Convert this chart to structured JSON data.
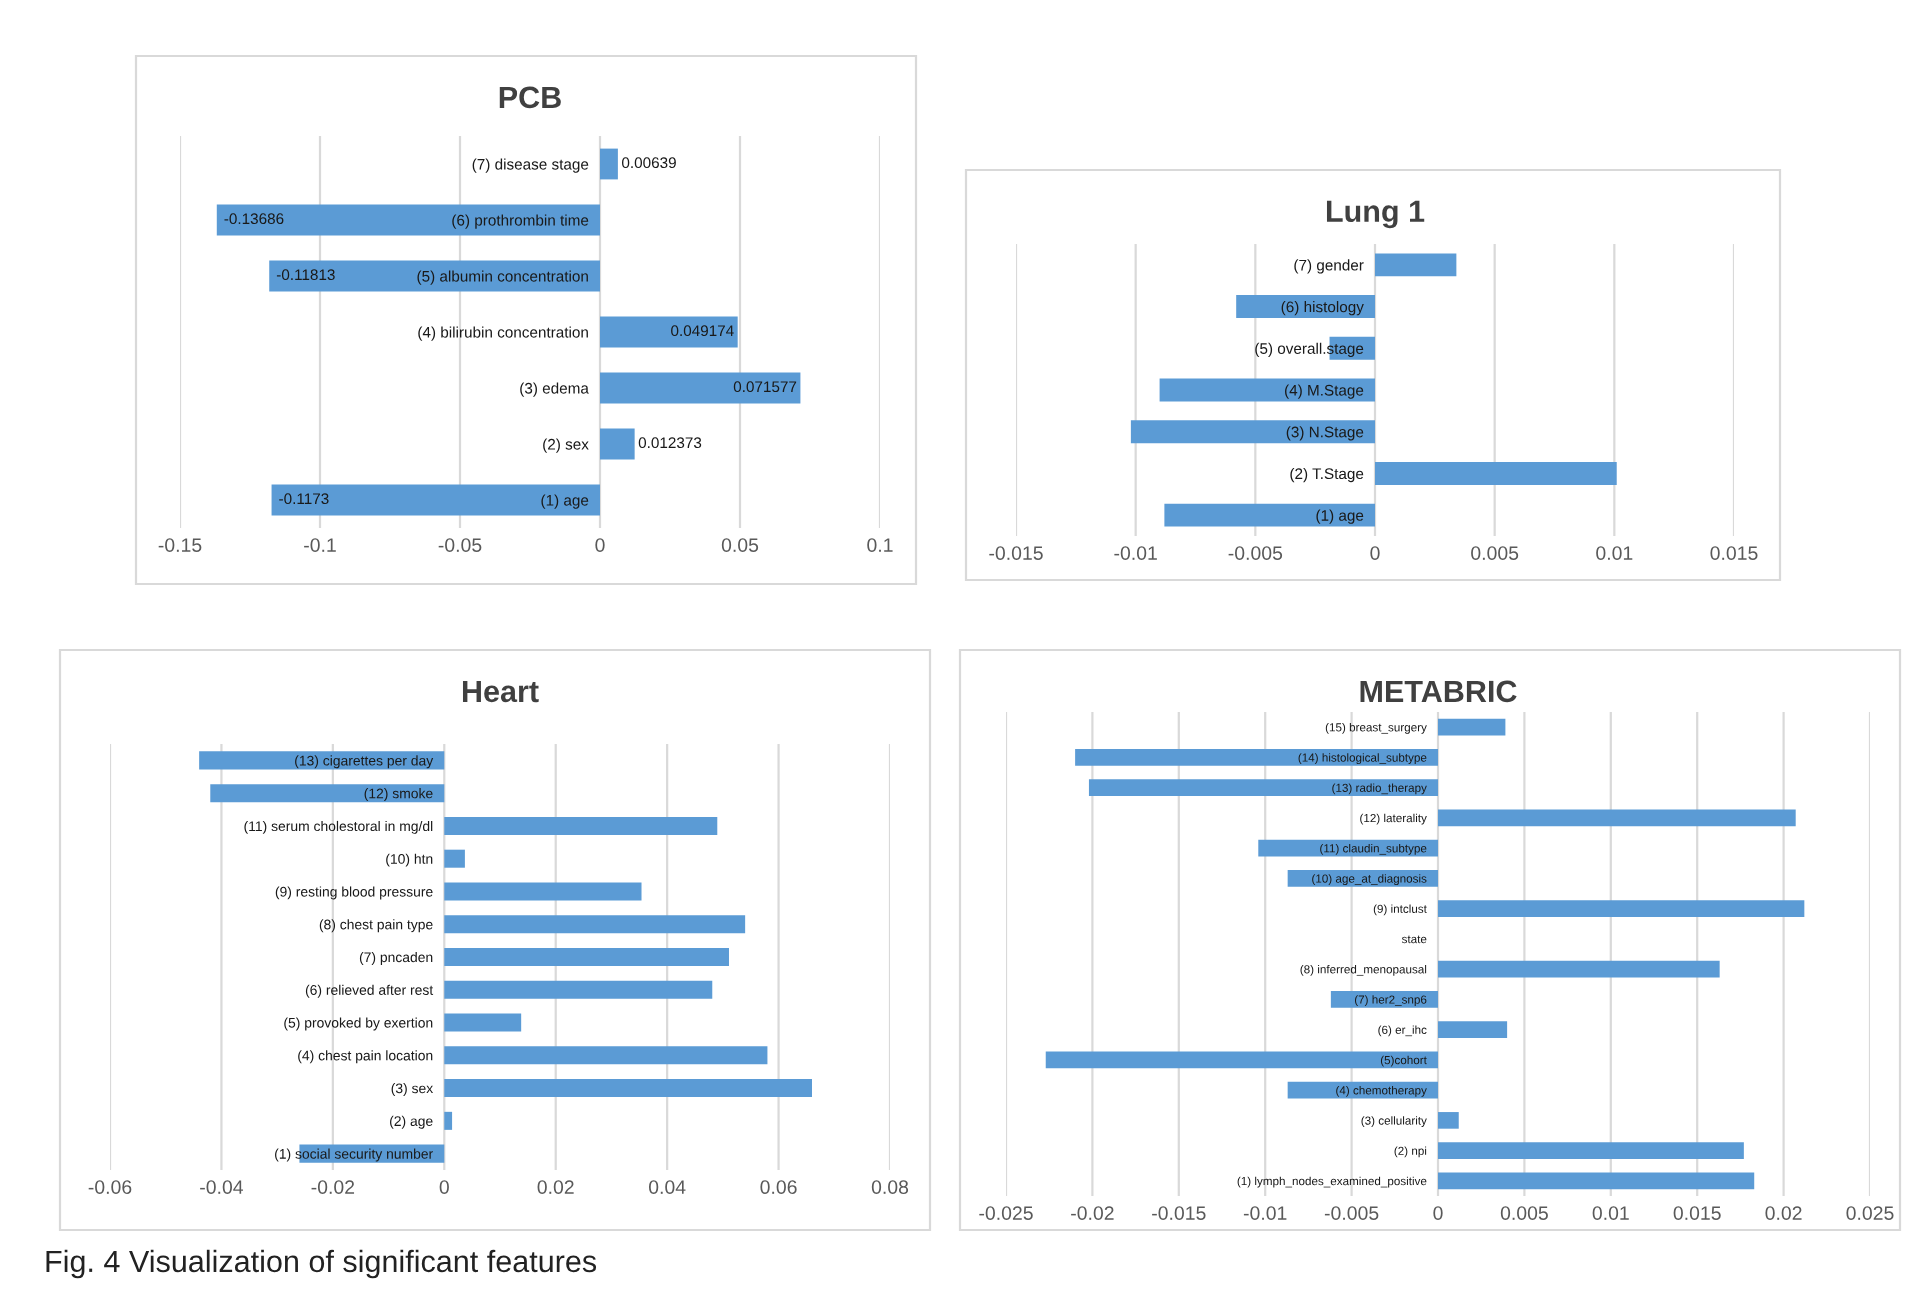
{
  "chart_data": [
    {
      "type": "bar",
      "orientation": "horizontal",
      "title": "PCB",
      "categories": [
        "(7) disease stage",
        "(6) prothrombin time",
        "(5) albumin concentration",
        "(4) bilirubin concentration",
        "(3) edema",
        "(2) sex",
        "(1) age"
      ],
      "values": [
        0.00639,
        -0.13686,
        -0.11813,
        0.049174,
        0.071577,
        0.012373,
        -0.1173
      ],
      "color": "#5b9bd5",
      "data_labels": true,
      "xlim": [
        -0.15,
        0.1
      ],
      "xticks": [
        -0.15,
        -0.1,
        -0.05,
        0,
        0.05,
        0.1
      ],
      "grid": "x",
      "legend": false,
      "annotations": [
        "Fig. 4 Visualization of significant features"
      ]
    },
    {
      "type": "bar",
      "orientation": "horizontal",
      "title": "Lung 1",
      "categories": [
        "(7) gender",
        "(6) histology",
        "(5) overall.stage",
        "(4) M.Stage",
        "(3) N.Stage",
        "(2) T.Stage",
        "(1) age"
      ],
      "values": [
        0.0034,
        -0.0058,
        -0.0019,
        -0.009,
        -0.0102,
        0.0101,
        -0.0088
      ],
      "color": "#5b9bd5",
      "xlim": [
        -0.015,
        0.015
      ],
      "xticks": [
        -0.015,
        -0.01,
        -0.005,
        0,
        0.005,
        0.01,
        0.015
      ],
      "grid": "x",
      "legend": false
    },
    {
      "type": "bar",
      "orientation": "horizontal",
      "title": "Heart",
      "categories": [
        "(13) cigarettes per day",
        "(12) smoke",
        "(11) serum cholestoral in mg/dl",
        "(10) htn",
        "(9) resting blood pressure",
        "(8) chest pain type",
        "(7) pncaden",
        "(6) relieved after rest",
        "(5) provoked by exertion",
        "(4) chest pain location",
        "(3) sex",
        "(2) age",
        "(1) social security number"
      ],
      "values": [
        -0.044,
        -0.042,
        0.049,
        0.0037,
        0.0354,
        0.054,
        0.0511,
        0.0481,
        0.0138,
        0.058,
        0.066,
        0.0014,
        -0.026
      ],
      "color": "#5b9bd5",
      "xlim": [
        -0.06,
        0.08
      ],
      "xticks": [
        -0.06,
        -0.04,
        -0.02,
        0,
        0.02,
        0.04,
        0.06,
        0.08
      ],
      "grid": "x",
      "legend": false
    },
    {
      "type": "bar",
      "orientation": "horizontal",
      "title": "METABRIC",
      "categories": [
        "(15) breast_surgery",
        "(14) histological_subtype",
        "(13) radio_therapy",
        "(12) laterality",
        "(11) claudin_subtype",
        "(10) age_at_diagnosis",
        "(9) intclust",
        "state",
        "(8) inferred_menopausal",
        "(7) her2_snp6",
        "(6) er_ihc",
        "(5)cohort",
        "(4) chemotherapy",
        "(3) cellularity",
        "(2) npi",
        "(1) lymph_nodes_examined_positive"
      ],
      "values": [
        0.0039,
        -0.021,
        -0.0202,
        0.0207,
        -0.0104,
        -0.0087,
        0.0212,
        null,
        0.0163,
        -0.0062,
        0.004,
        -0.0227,
        -0.0087,
        0.0012,
        0.0177,
        0.0183
      ],
      "color": "#5b9bd5",
      "xlim": [
        -0.025,
        0.025
      ],
      "xticks": [
        -0.025,
        -0.02,
        -0.015,
        -0.01,
        -0.005,
        0,
        0.005,
        0.01,
        0.015,
        0.02,
        0.025
      ],
      "grid": "x",
      "legend": false
    }
  ]
}
